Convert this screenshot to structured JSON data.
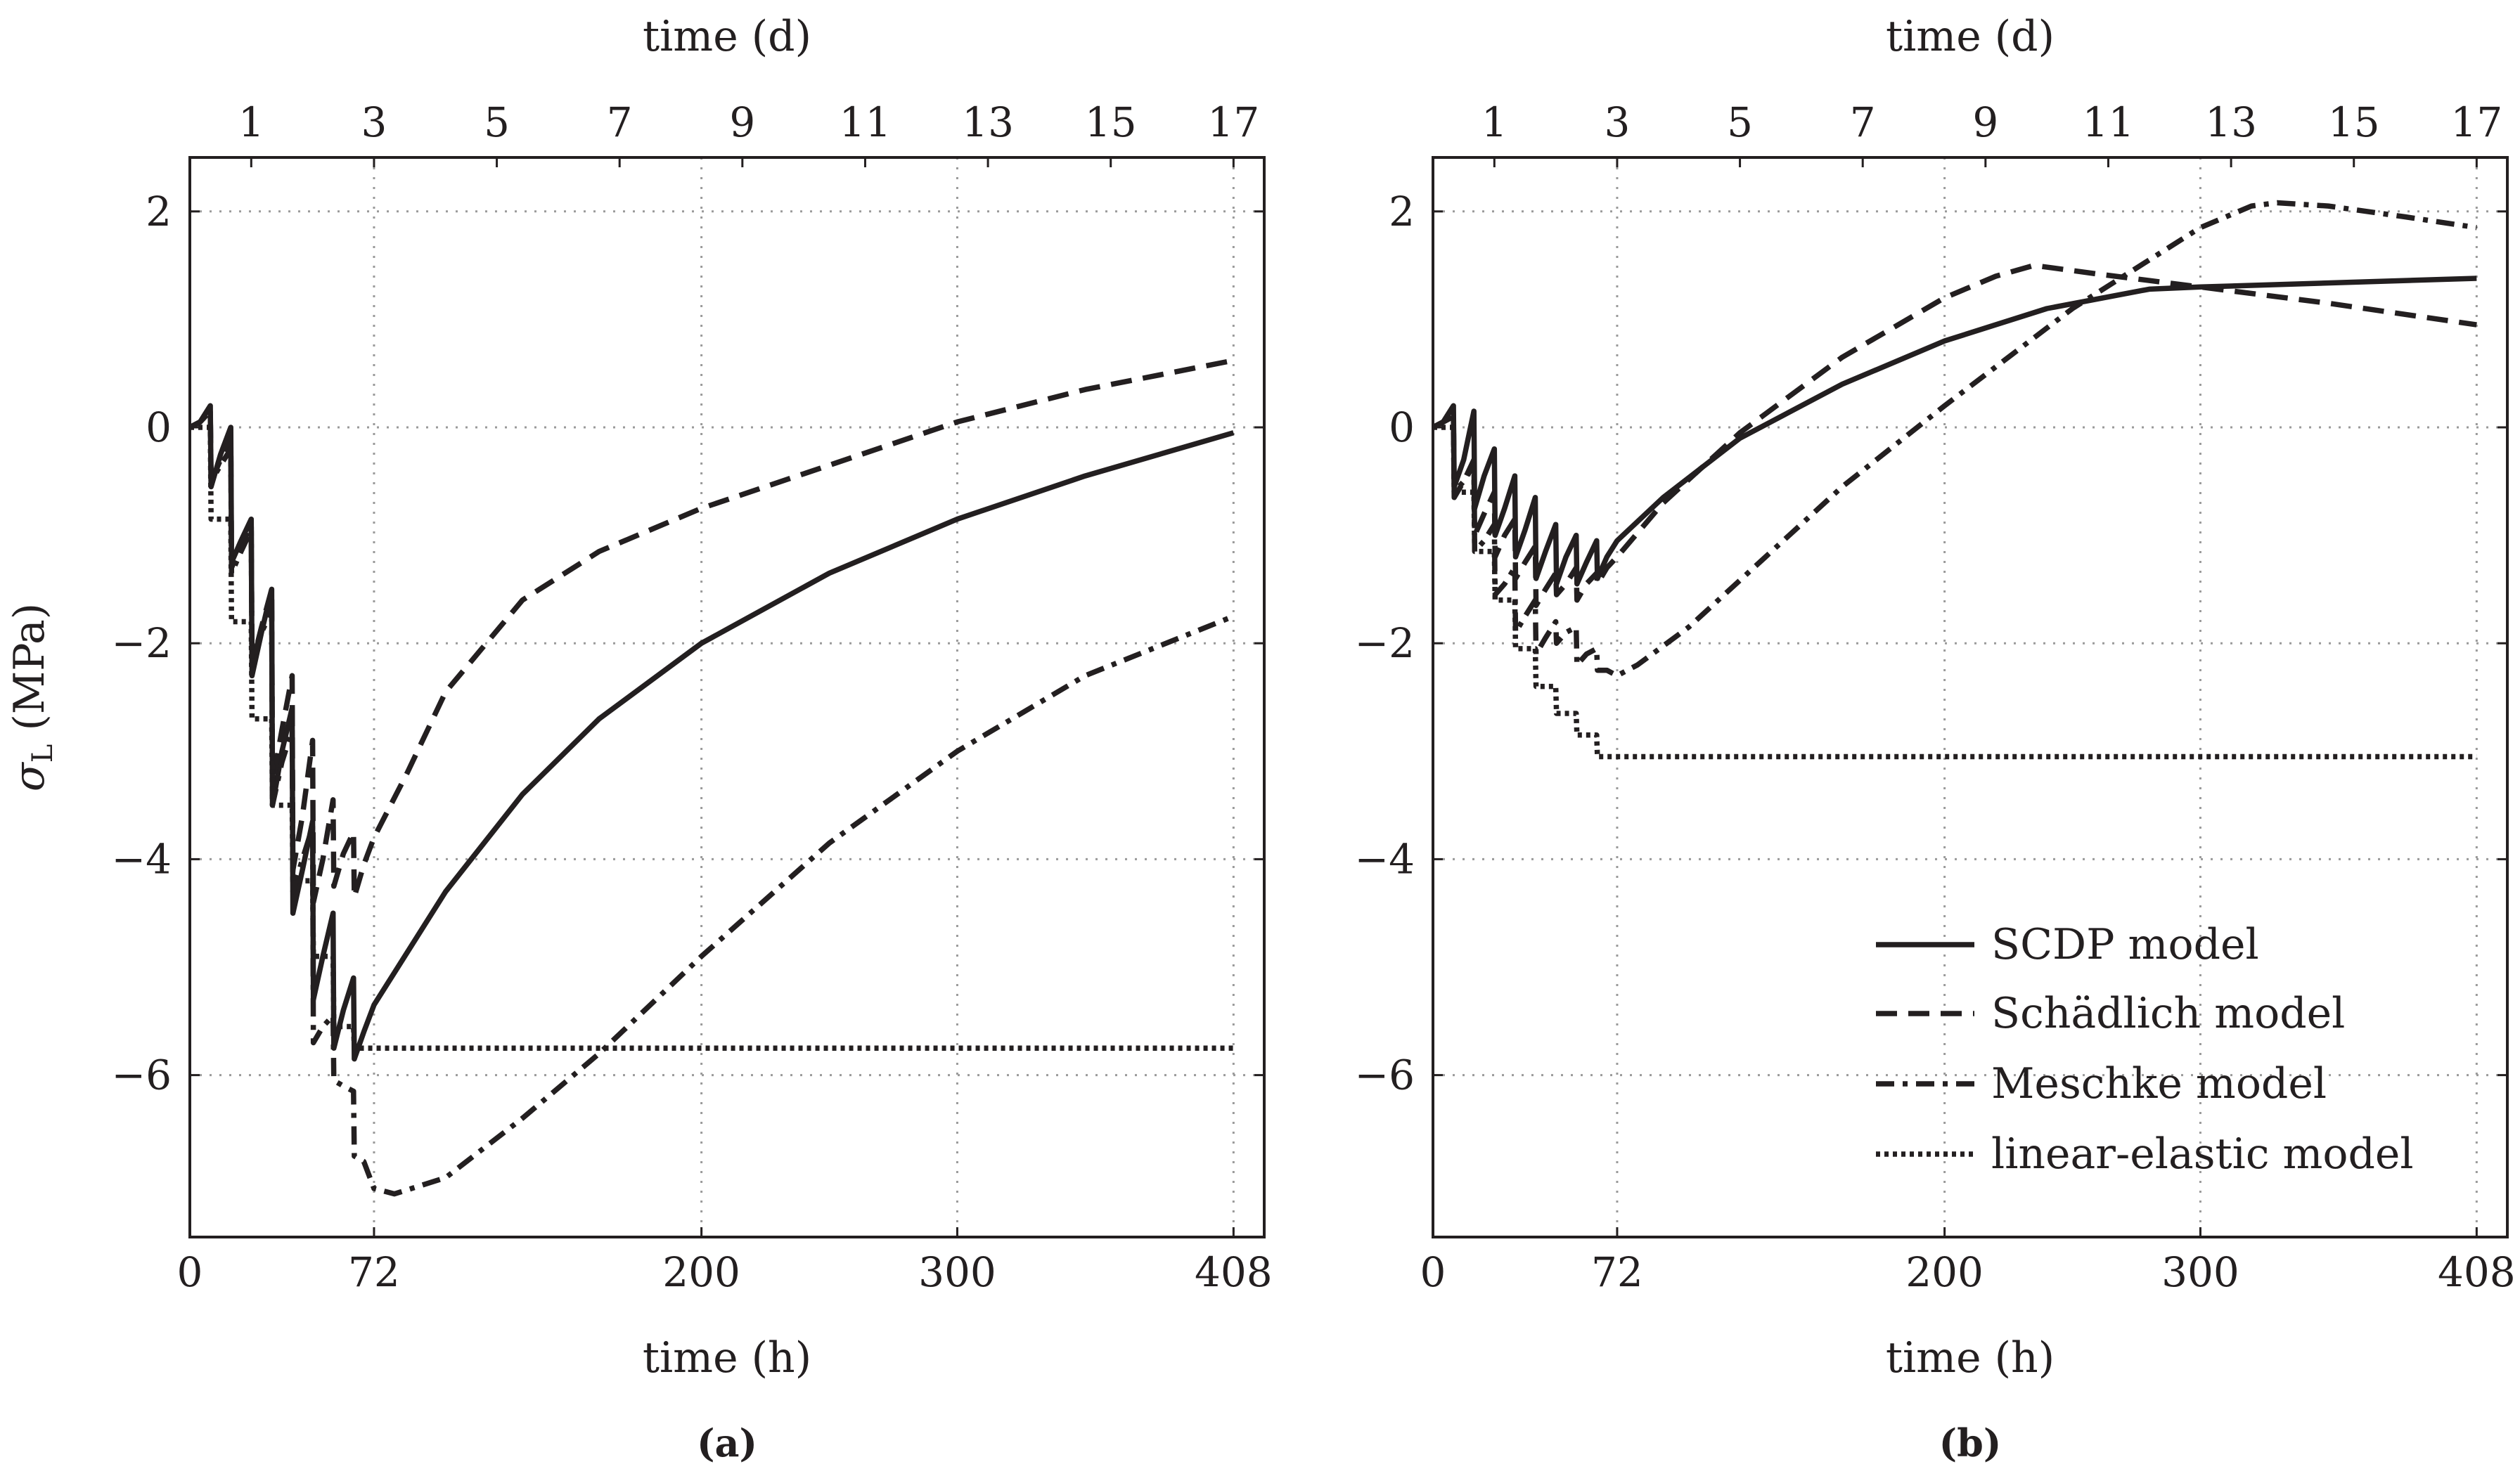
{
  "chart_data": [
    {
      "type": "line",
      "panel": "a",
      "caption": "(a)",
      "xlabel": "time (h)",
      "xlabel_top": "time (d)",
      "ylabel": "σL (MPa)",
      "xlim": [
        0,
        420
      ],
      "ylim": [
        -7.5,
        2.5
      ],
      "xticks": [
        0,
        72,
        200,
        300,
        408
      ],
      "xticks_top": [
        1,
        3,
        5,
        7,
        9,
        11,
        13,
        15,
        17
      ],
      "yticks": [
        -6,
        -4,
        -2,
        0,
        2
      ],
      "ytick_labels": [
        "−6",
        "−4",
        "−2",
        "0",
        "2"
      ],
      "grid": true,
      "series": [
        {
          "name": "SCDP model",
          "style": "solid",
          "x": [
            0,
            4,
            8,
            8.3,
            12,
            16,
            16.3,
            20,
            24,
            24.3,
            28,
            32,
            32.3,
            36,
            40,
            40.3,
            44,
            48,
            48.3,
            52,
            56,
            56.3,
            60,
            64,
            64.3,
            68,
            72,
            80,
            100,
            130,
            160,
            200,
            250,
            300,
            350,
            408
          ],
          "y": [
            0,
            0.05,
            0.2,
            -0.55,
            -0.25,
            0,
            -1.25,
            -1.05,
            -0.85,
            -2.3,
            -1.9,
            -1.5,
            -3.5,
            -3,
            -2.6,
            -4.5,
            -4.1,
            -3.65,
            -5.3,
            -4.9,
            -4.5,
            -5.75,
            -5.4,
            -5.1,
            -5.85,
            -5.6,
            -5.35,
            -5.05,
            -4.3,
            -3.4,
            -2.7,
            -2,
            -1.35,
            -0.85,
            -0.45,
            -0.05
          ]
        },
        {
          "name": "Schädlich model",
          "style": "dashed",
          "x": [
            0,
            4,
            8,
            8.3,
            12,
            16,
            16.3,
            20,
            24,
            24.3,
            28,
            32,
            32.3,
            36,
            40,
            40.3,
            44,
            48,
            48.3,
            52,
            56,
            56.3,
            60,
            64,
            64.3,
            68,
            72,
            85,
            100,
            130,
            160,
            200,
            250,
            300,
            350,
            408
          ],
          "y": [
            0,
            0.05,
            0.15,
            -0.5,
            -0.3,
            -0.1,
            -1.3,
            -1.1,
            -0.9,
            -2.2,
            -1.85,
            -1.5,
            -3.3,
            -2.8,
            -2.3,
            -4.1,
            -3.6,
            -2.9,
            -4.4,
            -4,
            -3.45,
            -4.25,
            -3.95,
            -3.75,
            -4.35,
            -4.05,
            -3.8,
            -3.2,
            -2.45,
            -1.6,
            -1.15,
            -0.75,
            -0.35,
            0.05,
            0.35,
            0.62
          ]
        },
        {
          "name": "Meschke model",
          "style": "dashdot",
          "x": [
            0,
            4,
            8,
            8.3,
            12,
            16,
            16.3,
            20,
            24,
            24.3,
            28,
            32,
            32.3,
            36,
            40,
            40.3,
            44,
            48,
            48.3,
            52,
            56,
            56.3,
            60,
            64,
            64.3,
            68,
            72,
            80,
            100,
            130,
            160,
            200,
            250,
            300,
            350,
            408
          ],
          "y": [
            0,
            0.05,
            0.15,
            -0.5,
            -0.35,
            -0.2,
            -1.35,
            -1.15,
            -0.95,
            -2.15,
            -1.9,
            -1.7,
            -3.5,
            -3.1,
            -2.8,
            -4.3,
            -4,
            -3.7,
            -5.7,
            -5.55,
            -5.45,
            -6.05,
            -6.1,
            -6.15,
            -6.75,
            -6.8,
            -7.05,
            -7.1,
            -6.95,
            -6.4,
            -5.8,
            -4.9,
            -3.85,
            -3.0,
            -2.3,
            -1.75
          ]
        },
        {
          "name": "linear-elastic model",
          "style": "dotted",
          "x": [
            0,
            8,
            8.3,
            16,
            16.3,
            24,
            24.3,
            32,
            32.3,
            40,
            40.3,
            48,
            48.3,
            56,
            56.3,
            64,
            64.3,
            72,
            408
          ],
          "y": [
            0,
            0,
            -0.85,
            -0.85,
            -1.8,
            -1.8,
            -2.7,
            -2.7,
            -3.5,
            -3.5,
            -4.2,
            -4.2,
            -4.9,
            -4.9,
            -5.55,
            -5.55,
            -5.75,
            -5.75,
            -5.75
          ]
        }
      ]
    },
    {
      "type": "line",
      "panel": "b",
      "caption": "(b)",
      "xlabel": "time (h)",
      "xlabel_top": "time (d)",
      "ylabel": "",
      "xlim": [
        0,
        420
      ],
      "ylim": [
        -7.5,
        2.5
      ],
      "xticks": [
        0,
        72,
        200,
        300,
        408
      ],
      "xticks_top": [
        1,
        3,
        5,
        7,
        9,
        11,
        13,
        15,
        17
      ],
      "yticks": [
        -6,
        -4,
        -2,
        0,
        2
      ],
      "ytick_labels": [
        "−6",
        "−4",
        "−2",
        "0",
        "2"
      ],
      "grid": true,
      "legend_position": "bottom-right",
      "series": [
        {
          "name": "SCDP model",
          "style": "solid",
          "x": [
            0,
            4,
            8,
            8.3,
            12,
            16,
            16.3,
            20,
            24,
            24.3,
            28,
            32,
            32.3,
            36,
            40,
            40.3,
            44,
            48,
            48.3,
            52,
            56,
            56.3,
            60,
            64,
            64.3,
            68,
            72,
            90,
            120,
            160,
            200,
            240,
            280,
            300,
            340,
            408
          ],
          "y": [
            0,
            0.05,
            0.2,
            -0.55,
            -0.3,
            0.15,
            -0.75,
            -0.45,
            -0.2,
            -1.0,
            -0.75,
            -0.45,
            -1.2,
            -0.95,
            -0.65,
            -1.4,
            -1.15,
            -0.9,
            -1.45,
            -1.2,
            -1.0,
            -1.45,
            -1.25,
            -1.05,
            -1.4,
            -1.2,
            -1.05,
            -0.65,
            -0.1,
            0.4,
            0.8,
            1.1,
            1.28,
            1.3,
            1.33,
            1.38
          ]
        },
        {
          "name": "Schädlich model",
          "style": "dashed",
          "x": [
            0,
            4,
            8,
            8.3,
            12,
            16,
            16.3,
            20,
            24,
            24.3,
            28,
            32,
            32.3,
            36,
            40,
            40.3,
            44,
            48,
            48.3,
            52,
            56,
            56.3,
            60,
            64,
            64.3,
            68,
            72,
            90,
            120,
            160,
            200,
            220,
            235,
            260,
            300,
            350,
            408
          ],
          "y": [
            0,
            0.05,
            0.1,
            -0.65,
            -0.5,
            -0.3,
            -1.0,
            -0.8,
            -0.6,
            -1.2,
            -1.0,
            -0.85,
            -1.4,
            -1.25,
            -1.1,
            -1.65,
            -1.5,
            -1.35,
            -1.55,
            -1.45,
            -1.3,
            -1.6,
            -1.45,
            -1.35,
            -1.45,
            -1.3,
            -1.2,
            -0.7,
            -0.05,
            0.65,
            1.2,
            1.4,
            1.5,
            1.42,
            1.3,
            1.15,
            0.95
          ]
        },
        {
          "name": "Meschke model",
          "style": "dashdot",
          "x": [
            0,
            4,
            8,
            8.3,
            12,
            16,
            16.3,
            20,
            24,
            24.3,
            28,
            32,
            32.3,
            36,
            40,
            40.3,
            44,
            48,
            48.3,
            52,
            56,
            56.3,
            60,
            64,
            64.3,
            68,
            72,
            80,
            100,
            130,
            160,
            200,
            250,
            300,
            320,
            330,
            350,
            380,
            408
          ],
          "y": [
            0,
            0.05,
            0.1,
            -0.6,
            -0.5,
            -0.35,
            -1.15,
            -1.05,
            -0.9,
            -1.55,
            -1.45,
            -1.3,
            -1.9,
            -1.75,
            -1.6,
            -2.1,
            -1.95,
            -1.8,
            -2.0,
            -1.9,
            -1.85,
            -2.2,
            -2.1,
            -2.05,
            -2.25,
            -2.25,
            -2.3,
            -2.2,
            -1.85,
            -1.2,
            -0.55,
            0.2,
            1.1,
            1.85,
            2.05,
            2.08,
            2.05,
            1.95,
            1.85
          ]
        },
        {
          "name": "linear-elastic model",
          "style": "dotted",
          "x": [
            0,
            8,
            8.3,
            16,
            16.3,
            24,
            24.3,
            32,
            32.3,
            40,
            40.3,
            48,
            48.3,
            56,
            56.3,
            64,
            64.3,
            72,
            408
          ],
          "y": [
            0,
            0,
            -0.6,
            -0.6,
            -1.15,
            -1.15,
            -1.6,
            -1.6,
            -2.05,
            -2.05,
            -2.4,
            -2.4,
            -2.65,
            -2.65,
            -2.85,
            -2.85,
            -3.05,
            -3.05,
            -3.05
          ]
        }
      ]
    }
  ]
}
